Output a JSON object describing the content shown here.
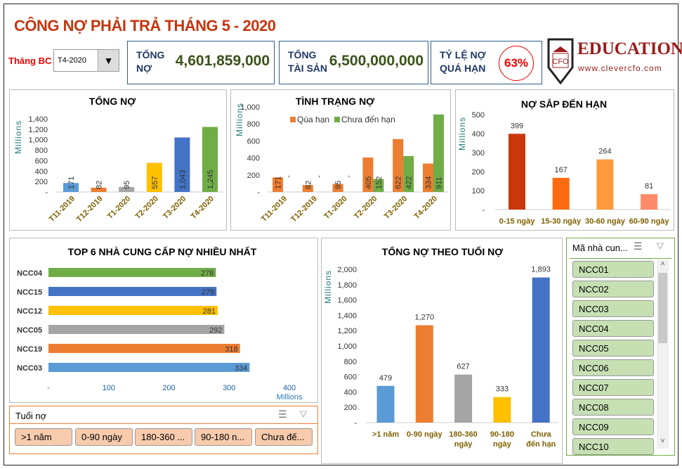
{
  "header": {
    "title": "CÔNG NỢ PHẢI TRẢ THÁNG 5 - 2020",
    "month_label": "Tháng BC",
    "month_value": "T4-2020"
  },
  "kpis": [
    {
      "label1": "TỔNG",
      "label2": "NỢ",
      "value": "4,601,859,000"
    },
    {
      "label1": "TỔNG",
      "label2": "TÀI SẢN",
      "value": "6,500,000,000"
    },
    {
      "label1": "TỶ LỆ NỢ",
      "label2": "QUÁ HẠN",
      "value": "63%"
    }
  ],
  "logo": {
    "mark": "CFO",
    "name": "EDUCATION",
    "url": "www.clevercfo.com"
  },
  "colors": {
    "title": "#c5360f",
    "accent_blue": "#4472c4",
    "orange": "#ed7d31",
    "green": "#70ad47",
    "gold_label": "#7f6000"
  },
  "chart_data": [
    {
      "type": "bar",
      "title": "TỔNG NỢ",
      "ylabel": "Millions",
      "ylim": [
        0,
        1400
      ],
      "yticks": [
        "-",
        "200",
        "400",
        "600",
        "800",
        "1,000",
        "1,200",
        "1,400"
      ],
      "categories": [
        "T11-2019",
        "T12-2019",
        "T1-2020",
        "T2-2020",
        "T3-2020",
        "T4-2020"
      ],
      "values": [
        171,
        82,
        95,
        557,
        1043,
        1245
      ],
      "labels": [
        "171",
        "82",
        "95",
        "557",
        "1,043",
        "1,245"
      ],
      "colors": [
        "#5b9bd5",
        "#ed7d31",
        "#a5a5a5",
        "#ffc000",
        "#4472c4",
        "#70ad47"
      ]
    },
    {
      "type": "bar",
      "title": "TÌNH TRẠNG NỢ",
      "ylabel": "Millions",
      "ylim": [
        0,
        1000
      ],
      "yticks": [
        "-",
        "200",
        "400",
        "600",
        "800",
        "1,000"
      ],
      "legend": "top",
      "categories": [
        "T11-2019",
        "T12-2019",
        "T1-2020",
        "T2-2020",
        "T3-2020",
        "T4-2020"
      ],
      "series": [
        {
          "name": "Qúa hạn",
          "color": "#ed7d31",
          "values": [
            171,
            82,
            95,
            405,
            622,
            334
          ],
          "labels": [
            "171",
            "82",
            "95",
            "405",
            "622",
            "334"
          ]
        },
        {
          "name": "Chưa đến hạn",
          "color": "#70ad47",
          "values": [
            0,
            0,
            0,
            152,
            422,
            911
          ],
          "labels": [
            "-",
            "-",
            "-",
            "152",
            "422",
            "911"
          ]
        }
      ]
    },
    {
      "type": "bar",
      "title": "NỢ SẮP ĐẾN HẠN",
      "ylabel": "Millions",
      "ylim": [
        0,
        500
      ],
      "yticks": [
        "-",
        "100",
        "200",
        "300",
        "400",
        "500"
      ],
      "categories": [
        "0-15 ngày",
        "15-30 ngày",
        "30-60 ngày",
        "60-90 ngày"
      ],
      "values": [
        399,
        167,
        264,
        81
      ],
      "labels": [
        "399",
        "167",
        "264",
        "81"
      ],
      "colors": [
        "#c9380a",
        "#ff6a10",
        "#ff9a3c",
        "#ff8a6a"
      ]
    },
    {
      "type": "hbar",
      "title": "TOP 6 NHÀ CUNG CẤP NỢ NHIỀU NHẤT",
      "xlabel": "Millions",
      "xlim": [
        0,
        400
      ],
      "xticks": [
        "-",
        "100",
        "200",
        "300",
        "400"
      ],
      "categories": [
        "NCC04",
        "NCC15",
        "NCC12",
        "NCC05",
        "NCC19",
        "NCC03"
      ],
      "values": [
        278,
        279,
        281,
        292,
        318,
        334
      ],
      "labels": [
        "278",
        "279",
        "281",
        "292",
        "318",
        "334"
      ],
      "colors": [
        "#70ad47",
        "#4472c4",
        "#ffc000",
        "#a5a5a5",
        "#ed7d31",
        "#5b9bd5"
      ]
    },
    {
      "type": "bar",
      "title": "TỔNG NỢ THEO TUỔI NỢ",
      "ylabel": "Millions",
      "ylim": [
        0,
        2000
      ],
      "yticks": [
        "-",
        "200",
        "400",
        "600",
        "800",
        "1,000",
        "1,200",
        "1,400",
        "1,600",
        "1,800",
        "2,000"
      ],
      "categories": [
        [
          ">1 năm"
        ],
        [
          "0-90 ngày"
        ],
        [
          "180-360",
          "ngày"
        ],
        [
          "90-180",
          "ngày"
        ],
        [
          "Chưa",
          "đến hạn"
        ]
      ],
      "values": [
        479,
        1270,
        627,
        333,
        1893
      ],
      "labels": [
        "479",
        "1,270",
        "627",
        "333",
        "1,893"
      ],
      "colors": [
        "#5b9bd5",
        "#ed7d31",
        "#a5a5a5",
        "#ffc000",
        "#4472c4"
      ]
    }
  ],
  "slicer_age": {
    "title": "Tuổi nợ",
    "items": [
      ">1 năm",
      "0-90 ngày",
      "180-360 ...",
      "90-180 n...",
      "Chưa đế..."
    ]
  },
  "slicer_supplier": {
    "title": "Mã nhà cun...",
    "items": [
      "NCC01",
      "NCC02",
      "NCC03",
      "NCC04",
      "NCC05",
      "NCC06",
      "NCC07",
      "NCC08",
      "NCC09",
      "NCC10"
    ]
  }
}
